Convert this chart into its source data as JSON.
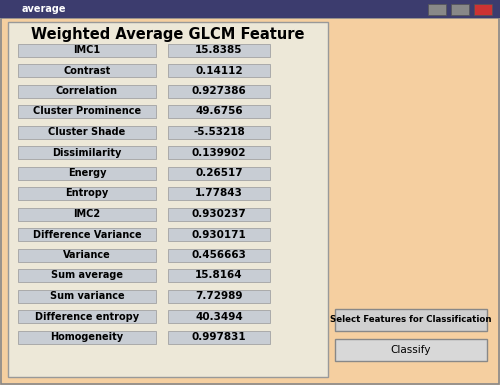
{
  "title": "Weighted Average GLCM Feature",
  "window_title": "average",
  "bg_color": "#F5CFA0",
  "cell_color": "#C8CDD4",
  "border_color": "#999999",
  "features": [
    [
      "IMC1",
      "15.8385"
    ],
    [
      "Contrast",
      "0.14112"
    ],
    [
      "Correlation",
      "0.927386"
    ],
    [
      "Cluster Prominence",
      "49.6756"
    ],
    [
      "Cluster Shade",
      "-5.53218"
    ],
    [
      "Dissimilarity",
      "0.139902"
    ],
    [
      "Energy",
      "0.26517"
    ],
    [
      "Entropy",
      "1.77843"
    ],
    [
      "IMC2",
      "0.930237"
    ],
    [
      "Difference Variance",
      "0.930171"
    ],
    [
      "Variance",
      "0.456663"
    ],
    [
      "Sum average",
      "15.8164"
    ],
    [
      "Sum variance",
      "7.72989"
    ],
    [
      "Difference entropy",
      "40.3494"
    ],
    [
      "Homogeneity",
      "0.997831"
    ]
  ],
  "button1_text": "Select Features for Classification",
  "button2_text": "Classify",
  "title_bar_color": "#3C3C6E",
  "title_fontsize": 10.5,
  "label_fontsize": 7.0,
  "value_fontsize": 7.5,
  "titlebar_fontsize": 7.0
}
